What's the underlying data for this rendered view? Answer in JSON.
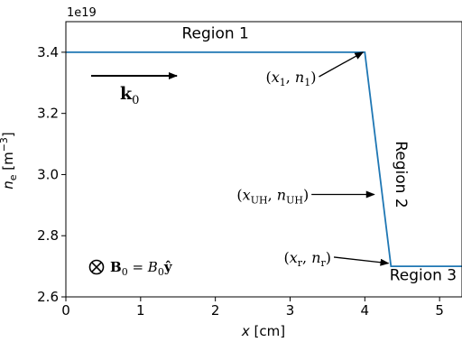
{
  "chart_data": {
    "type": "line",
    "title": "",
    "xlabel": "x [cm]",
    "ylabel": "n_e [m^-3]",
    "y_offset_label": "1e19",
    "xlim": [
      0,
      5.3
    ],
    "ylim": [
      2.6,
      3.5
    ],
    "xticks": [
      0,
      1,
      2,
      3,
      4,
      5
    ],
    "xtick_labels": [
      "0",
      "1",
      "2",
      "3",
      "4",
      "5"
    ],
    "yticks": [
      2.6,
      2.8,
      3.0,
      3.2,
      3.4
    ],
    "ytick_labels": [
      "2.6",
      "2.8",
      "3.0",
      "3.2",
      "3.4"
    ],
    "grid": false,
    "series": [
      {
        "color": "#1f77b4",
        "x": [
          0,
          4.0,
          4.35,
          5.3
        ],
        "y": [
          3.4,
          3.4,
          2.7,
          2.7
        ]
      }
    ],
    "regions": [
      {
        "label": "Region 1",
        "x": 2.0,
        "y": 3.445,
        "rotate": false
      },
      {
        "label": "Region 2",
        "x": 4.42,
        "y": 3.0,
        "rotate": true
      },
      {
        "label": "Region 3",
        "x": 4.78,
        "y": 2.655,
        "rotate": false
      }
    ],
    "annotations": [
      {
        "text": "(x1, n1)",
        "target": [
          4.0,
          3.4
        ],
        "text_pos": [
          3.35,
          3.32
        ]
      },
      {
        "text": "(xUH, nUH)",
        "target": [
          4.15,
          2.935
        ],
        "text_pos": [
          3.25,
          2.935
        ]
      },
      {
        "text": "(xr, nr)",
        "target": [
          4.34,
          2.71
        ],
        "text_pos": [
          3.55,
          2.73
        ]
      }
    ],
    "wave_vector_label": "k0",
    "magnetic_field_label": "B0 = B0 y"
  }
}
